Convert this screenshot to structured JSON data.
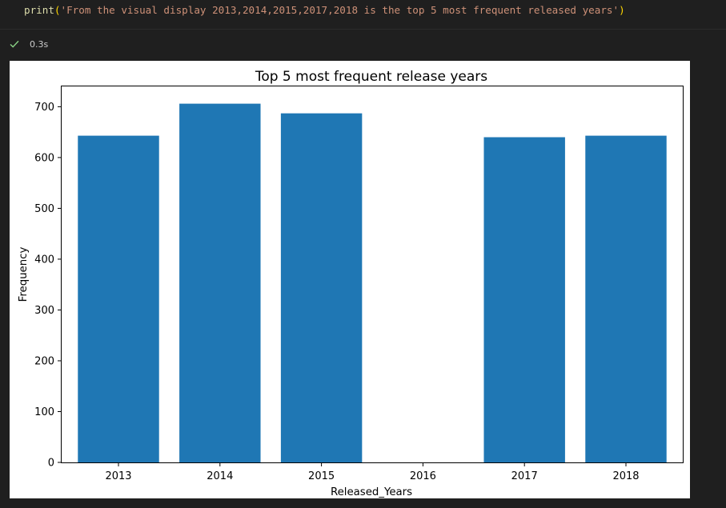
{
  "code_cell": {
    "fn": "print",
    "open_paren": "(",
    "string": "'From the visual display 2013,2014,2015,2017,2018 is the top 5 most frequent released years'",
    "close_paren": ")"
  },
  "status": {
    "exec_time": "0.3s",
    "icon": "check-icon",
    "color": "#89d185"
  },
  "chart_data": {
    "type": "bar",
    "title": "Top 5 most frequent release years",
    "xlabel": "Released_Years",
    "ylabel": "Frequency",
    "categories": [
      "2013",
      "2014",
      "2015",
      "2016",
      "2017",
      "2018"
    ],
    "values": [
      643,
      706,
      687,
      null,
      640,
      643
    ],
    "ylim": [
      0,
      740
    ],
    "yticks": [
      0,
      100,
      200,
      300,
      400,
      500,
      600,
      700
    ],
    "grid": false,
    "bar_color": "#1f77b4"
  }
}
